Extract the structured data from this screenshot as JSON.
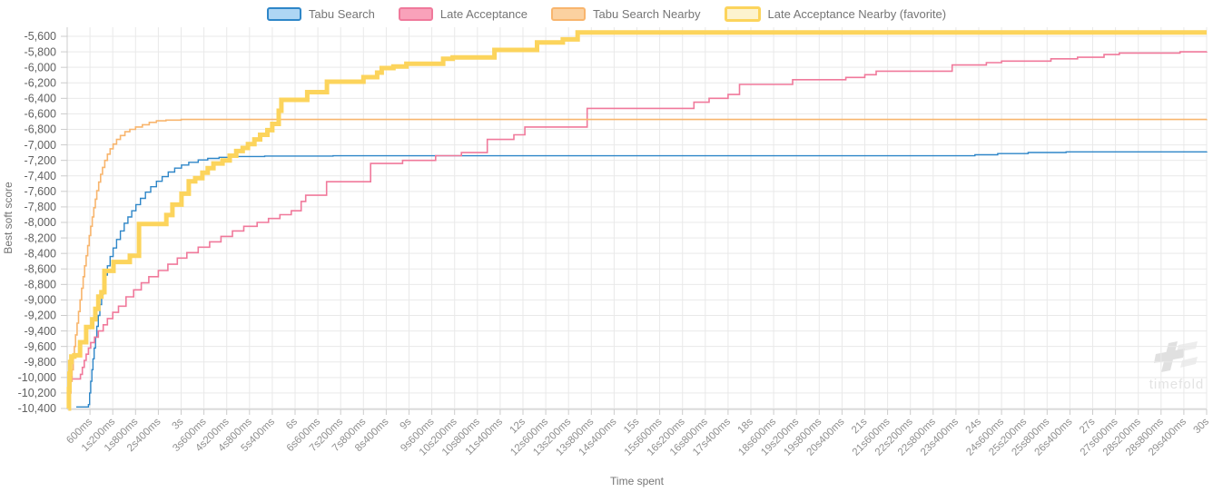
{
  "chart": {
    "y_axis_title": "Best soft score",
    "x_axis_title": "Time spent",
    "watermark_text": "timefold"
  },
  "colors": {
    "grid": "#e9e9e9",
    "axis_line": "#cccccc",
    "y_tick_text": "#616161",
    "x_tick_text": "#8f8f8f",
    "axis_title_text": "#757575",
    "legend_text": "#757575",
    "background": "#ffffff"
  },
  "chart_data": {
    "type": "line",
    "line_style": "step-after",
    "title": "",
    "xlabel": "Time spent",
    "ylabel": "Best soft score",
    "grid": true,
    "legend_position": "top",
    "xlim_ms": [
      0,
      30000
    ],
    "ylim": [
      -10400,
      -5500
    ],
    "x_tick_interval_ms": 600,
    "y_tick_step": 200,
    "x_tick_labels": [
      "600ms",
      "1s200ms",
      "1s800ms",
      "2s400ms",
      "3s",
      "3s600ms",
      "4s200ms",
      "4s800ms",
      "5s400ms",
      "6s",
      "6s600ms",
      "7s200ms",
      "7s800ms",
      "8s400ms",
      "9s",
      "9s600ms",
      "10s200ms",
      "10s800ms",
      "11s400ms",
      "12s",
      "12s600ms",
      "13s200ms",
      "13s800ms",
      "14s400ms",
      "15s",
      "15s600ms",
      "16s200ms",
      "16s800ms",
      "17s400ms",
      "18s",
      "18s600ms",
      "19s200ms",
      "19s800ms",
      "20s400ms",
      "21s",
      "21s600ms",
      "22s200ms",
      "22s800ms",
      "23s400ms",
      "24s",
      "24s600ms",
      "25s200ms",
      "25s800ms",
      "26s400ms",
      "27s",
      "27s600ms",
      "28s200ms",
      "28s800ms",
      "29s400ms",
      "30s"
    ],
    "y_tick_labels": [
      "-5,600",
      "-5,800",
      "-6,000",
      "-6,200",
      "-6,400",
      "-6,600",
      "-6,800",
      "-7,000",
      "-7,200",
      "-7,400",
      "-7,600",
      "-7,800",
      "-8,000",
      "-8,200",
      "-8,400",
      "-8,600",
      "-8,800",
      "-9,000",
      "-9,200",
      "-9,400",
      "-9,600",
      "-9,800",
      "-10,000",
      "-10,200",
      "-10,400"
    ],
    "y_tick_values": [
      -5600,
      -5800,
      -6000,
      -6200,
      -6400,
      -6600,
      -6800,
      -7000,
      -7200,
      -7400,
      -7600,
      -7800,
      -8000,
      -8200,
      -8400,
      -8600,
      -8800,
      -9000,
      -9200,
      -9400,
      -9600,
      -9800,
      -10000,
      -10200,
      -10400
    ],
    "series": [
      {
        "name": "Tabu Search",
        "color": "#2e86c8",
        "fill": "#aed6f4",
        "line_width": 1.4,
        "favorite": false,
        "points": [
          [
            240,
            -10380
          ],
          [
            560,
            -10350
          ],
          [
            590,
            -10200
          ],
          [
            620,
            -10050
          ],
          [
            650,
            -9900
          ],
          [
            680,
            -9760
          ],
          [
            710,
            -9620
          ],
          [
            745,
            -9480
          ],
          [
            780,
            -9340
          ],
          [
            820,
            -9200
          ],
          [
            860,
            -9060
          ],
          [
            905,
            -8930
          ],
          [
            950,
            -8800
          ],
          [
            1000,
            -8680
          ],
          [
            1060,
            -8560
          ],
          [
            1130,
            -8440
          ],
          [
            1210,
            -8330
          ],
          [
            1300,
            -8220
          ],
          [
            1400,
            -8110
          ],
          [
            1500,
            -8010
          ],
          [
            1600,
            -7930
          ],
          [
            1700,
            -7850
          ],
          [
            1810,
            -7770
          ],
          [
            1930,
            -7690
          ],
          [
            2060,
            -7610
          ],
          [
            2200,
            -7540
          ],
          [
            2350,
            -7470
          ],
          [
            2500,
            -7410
          ],
          [
            2660,
            -7350
          ],
          [
            2830,
            -7300
          ],
          [
            3010,
            -7260
          ],
          [
            3200,
            -7225
          ],
          [
            3450,
            -7195
          ],
          [
            3700,
            -7175
          ],
          [
            4000,
            -7160
          ],
          [
            4400,
            -7150
          ],
          [
            5200,
            -7144
          ],
          [
            7000,
            -7141
          ],
          [
            23900,
            -7128
          ],
          [
            24500,
            -7112
          ],
          [
            25300,
            -7098
          ],
          [
            26300,
            -7090
          ],
          [
            30000,
            -7086
          ]
        ]
      },
      {
        "name": "Late Acceptance",
        "color": "#f0799b",
        "fill": "#f9a2ba",
        "line_width": 1.6,
        "favorite": false,
        "points": [
          [
            40,
            -10380
          ],
          [
            60,
            -10150
          ],
          [
            80,
            -10020
          ],
          [
            350,
            -9960
          ],
          [
            400,
            -9870
          ],
          [
            450,
            -9780
          ],
          [
            500,
            -9700
          ],
          [
            560,
            -9620
          ],
          [
            620,
            -9550
          ],
          [
            720,
            -9480
          ],
          [
            820,
            -9400
          ],
          [
            950,
            -9320
          ],
          [
            1060,
            -9240
          ],
          [
            1200,
            -9160
          ],
          [
            1350,
            -9080
          ],
          [
            1550,
            -8960
          ],
          [
            1750,
            -8870
          ],
          [
            1950,
            -8780
          ],
          [
            2150,
            -8700
          ],
          [
            2400,
            -8620
          ],
          [
            2650,
            -8540
          ],
          [
            2900,
            -8460
          ],
          [
            3150,
            -8390
          ],
          [
            3450,
            -8320
          ],
          [
            3750,
            -8250
          ],
          [
            4050,
            -8180
          ],
          [
            4350,
            -8110
          ],
          [
            4650,
            -8050
          ],
          [
            5000,
            -8000
          ],
          [
            5300,
            -7950
          ],
          [
            5600,
            -7900
          ],
          [
            5900,
            -7850
          ],
          [
            6160,
            -7730
          ],
          [
            6280,
            -7650
          ],
          [
            6830,
            -7475
          ],
          [
            7990,
            -7240
          ],
          [
            8830,
            -7200
          ],
          [
            9700,
            -7140
          ],
          [
            10380,
            -7100
          ],
          [
            11060,
            -6930
          ],
          [
            11760,
            -6870
          ],
          [
            12050,
            -6770
          ],
          [
            13690,
            -6530
          ],
          [
            16500,
            -6450
          ],
          [
            16900,
            -6400
          ],
          [
            17400,
            -6350
          ],
          [
            17700,
            -6220
          ],
          [
            19100,
            -6160
          ],
          [
            20500,
            -6130
          ],
          [
            21000,
            -6095
          ],
          [
            21300,
            -6050
          ],
          [
            23300,
            -5970
          ],
          [
            24200,
            -5940
          ],
          [
            24600,
            -5920
          ],
          [
            25900,
            -5890
          ],
          [
            26600,
            -5870
          ],
          [
            27300,
            -5835
          ],
          [
            27700,
            -5815
          ],
          [
            29300,
            -5800
          ],
          [
            30000,
            -5795
          ]
        ]
      },
      {
        "name": "Tabu Search Nearby",
        "color": "#f8b56d",
        "fill": "#fbd1a0",
        "line_width": 1.6,
        "favorite": false,
        "points": [
          [
            60,
            -10380
          ],
          [
            80,
            -10200
          ],
          [
            100,
            -10050
          ],
          [
            130,
            -9900
          ],
          [
            160,
            -9750
          ],
          [
            190,
            -9600
          ],
          [
            220,
            -9450
          ],
          [
            260,
            -9300
          ],
          [
            300,
            -9150
          ],
          [
            340,
            -9000
          ],
          [
            380,
            -8850
          ],
          [
            420,
            -8700
          ],
          [
            460,
            -8560
          ],
          [
            500,
            -8430
          ],
          [
            540,
            -8300
          ],
          [
            580,
            -8170
          ],
          [
            620,
            -8050
          ],
          [
            660,
            -7930
          ],
          [
            700,
            -7810
          ],
          [
            740,
            -7700
          ],
          [
            780,
            -7590
          ],
          [
            830,
            -7480
          ],
          [
            880,
            -7380
          ],
          [
            930,
            -7290
          ],
          [
            990,
            -7200
          ],
          [
            1060,
            -7120
          ],
          [
            1130,
            -7050
          ],
          [
            1210,
            -6990
          ],
          [
            1300,
            -6930
          ],
          [
            1400,
            -6880
          ],
          [
            1520,
            -6830
          ],
          [
            1650,
            -6800
          ],
          [
            1800,
            -6770
          ],
          [
            1980,
            -6740
          ],
          [
            2160,
            -6710
          ],
          [
            2350,
            -6690
          ],
          [
            2600,
            -6680
          ],
          [
            3000,
            -6672
          ],
          [
            30000,
            -6670
          ]
        ]
      },
      {
        "name": "Late Acceptance Nearby (favorite)",
        "color": "#fcd45c",
        "fill": "#fdf3cf",
        "line_width": 5,
        "favorite": true,
        "points": [
          [
            30,
            -10400
          ],
          [
            45,
            -10150
          ],
          [
            60,
            -9950
          ],
          [
            80,
            -9800
          ],
          [
            110,
            -9730
          ],
          [
            190,
            -9714
          ],
          [
            340,
            -9545
          ],
          [
            500,
            -9350
          ],
          [
            660,
            -9250
          ],
          [
            740,
            -9115
          ],
          [
            820,
            -8957
          ],
          [
            900,
            -8900
          ],
          [
            980,
            -8625
          ],
          [
            1220,
            -8510
          ],
          [
            1650,
            -8430
          ],
          [
            1890,
            -8020
          ],
          [
            2610,
            -7905
          ],
          [
            2770,
            -7770
          ],
          [
            3010,
            -7630
          ],
          [
            3200,
            -7470
          ],
          [
            3370,
            -7430
          ],
          [
            3560,
            -7360
          ],
          [
            3700,
            -7300
          ],
          [
            3850,
            -7240
          ],
          [
            4090,
            -7200
          ],
          [
            4280,
            -7140
          ],
          [
            4450,
            -7080
          ],
          [
            4620,
            -7040
          ],
          [
            4760,
            -6990
          ],
          [
            4930,
            -6930
          ],
          [
            5080,
            -6870
          ],
          [
            5270,
            -6810
          ],
          [
            5400,
            -6730
          ],
          [
            5570,
            -6560
          ],
          [
            5640,
            -6420
          ],
          [
            6320,
            -6320
          ],
          [
            6840,
            -6185
          ],
          [
            7800,
            -6127
          ],
          [
            8160,
            -6068
          ],
          [
            8280,
            -6010
          ],
          [
            8590,
            -5990
          ],
          [
            8930,
            -5955
          ],
          [
            9900,
            -5890
          ],
          [
            10150,
            -5873
          ],
          [
            11250,
            -5776
          ],
          [
            12370,
            -5680
          ],
          [
            13050,
            -5640
          ],
          [
            13440,
            -5550
          ],
          [
            30000,
            -5550
          ]
        ]
      }
    ]
  }
}
